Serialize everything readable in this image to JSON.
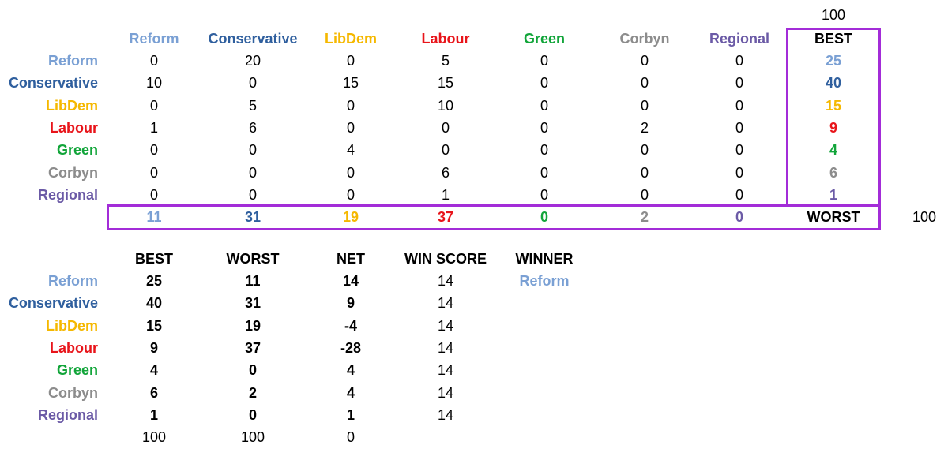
{
  "party_colors": {
    "Reform": "#7aa0d4",
    "Conservative": "#2f5f9e",
    "LibDem": "#f5b800",
    "Labour": "#e8141a",
    "Green": "#12a53a",
    "Corbyn": "#8c8c8c",
    "Regional": "#6b5aa6"
  },
  "box_color": "#a32cd8",
  "matrix": {
    "corner_total": "100",
    "columns": [
      "Reform",
      "Conservative",
      "LibDem",
      "Labour",
      "Green",
      "Corbyn",
      "Regional"
    ],
    "best_header": "BEST",
    "rows": [
      {
        "party": "Reform",
        "values": [
          "0",
          "20",
          "0",
          "5",
          "0",
          "0",
          "0"
        ],
        "best": "25"
      },
      {
        "party": "Conservative",
        "values": [
          "10",
          "0",
          "15",
          "15",
          "0",
          "0",
          "0"
        ],
        "best": "40"
      },
      {
        "party": "LibDem",
        "values": [
          "0",
          "5",
          "0",
          "10",
          "0",
          "0",
          "0"
        ],
        "best": "15"
      },
      {
        "party": "Labour",
        "values": [
          "1",
          "6",
          "0",
          "0",
          "0",
          "2",
          "0"
        ],
        "best": "9"
      },
      {
        "party": "Green",
        "values": [
          "0",
          "0",
          "4",
          "0",
          "0",
          "0",
          "0"
        ],
        "best": "4"
      },
      {
        "party": "Corbyn",
        "values": [
          "0",
          "0",
          "0",
          "6",
          "0",
          "0",
          "0"
        ],
        "best": "6"
      },
      {
        "party": "Regional",
        "values": [
          "0",
          "0",
          "0",
          "1",
          "0",
          "0",
          "0"
        ],
        "best": "1"
      }
    ],
    "worst_values": [
      "11",
      "31",
      "19",
      "37",
      "0",
      "2",
      "0"
    ],
    "worst_label": "WORST",
    "worst_total": "100"
  },
  "summary": {
    "headers": [
      "BEST",
      "WORST",
      "NET",
      "WIN SCORE",
      "WINNER"
    ],
    "rows": [
      {
        "party": "Reform",
        "best": "25",
        "worst": "11",
        "net": "14",
        "win_score": "14",
        "winner": "Reform"
      },
      {
        "party": "Conservative",
        "best": "40",
        "worst": "31",
        "net": "9",
        "win_score": "14",
        "winner": ""
      },
      {
        "party": "LibDem",
        "best": "15",
        "worst": "19",
        "net": "-4",
        "win_score": "14",
        "winner": ""
      },
      {
        "party": "Labour",
        "best": "9",
        "worst": "37",
        "net": "-28",
        "win_score": "14",
        "winner": ""
      },
      {
        "party": "Green",
        "best": "4",
        "worst": "0",
        "net": "4",
        "win_score": "14",
        "winner": ""
      },
      {
        "party": "Corbyn",
        "best": "6",
        "worst": "2",
        "net": "4",
        "win_score": "14",
        "winner": ""
      },
      {
        "party": "Regional",
        "best": "1",
        "worst": "0",
        "net": "1",
        "win_score": "14",
        "winner": ""
      }
    ],
    "totals": [
      "100",
      "100",
      "0"
    ]
  }
}
